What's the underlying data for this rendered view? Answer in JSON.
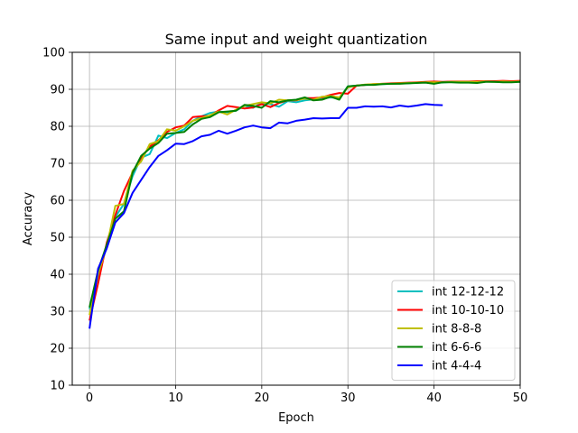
{
  "chart_data": {
    "type": "line",
    "title": "Same input and weight quantization",
    "xlabel": "Epoch",
    "ylabel": "Accuracy",
    "xlim": [
      -2,
      50
    ],
    "ylim": [
      10,
      100
    ],
    "xticks": [
      0,
      10,
      20,
      30,
      40,
      50
    ],
    "yticks": [
      10,
      20,
      30,
      40,
      50,
      60,
      70,
      80,
      90,
      100
    ],
    "grid": true,
    "legend_position": "lower-right",
    "series": [
      {
        "name": "int 12-12-12",
        "color": "#00bfbf",
        "x": [
          0,
          1,
          2,
          3,
          4,
          5,
          6,
          7,
          8,
          9,
          10,
          11,
          12,
          13,
          14,
          15,
          16,
          17,
          18,
          19,
          20,
          21,
          22,
          23,
          24,
          25,
          26,
          27,
          28,
          29,
          30,
          31,
          32,
          33,
          34,
          35,
          36,
          37,
          38,
          39,
          40,
          41,
          42,
          43,
          44,
          45,
          46,
          47,
          48,
          49,
          50
        ],
        "y": [
          30.5,
          39.5,
          47.5,
          55.5,
          59,
          66.5,
          71.5,
          72.5,
          77.5,
          76.8,
          78.2,
          79.2,
          81.5,
          82.7,
          83.6,
          84.0,
          83.8,
          84.2,
          85.5,
          85.0,
          86.4,
          86.0,
          85.3,
          86.8,
          86.5,
          87.0,
          87.3,
          87.6,
          87.8,
          87.6,
          90.8,
          91.0,
          91.2,
          91.3,
          91.4,
          91.5,
          91.6,
          91.6,
          91.8,
          91.9,
          91.8,
          91.8,
          92.0,
          91.9,
          92.0,
          92.0,
          92.1,
          92.0,
          92.0,
          92.1,
          92.0
        ]
      },
      {
        "name": "int 10-10-10",
        "color": "#ff0000",
        "x": [
          0,
          1,
          2,
          3,
          4,
          5,
          6,
          7,
          8,
          9,
          10,
          11,
          12,
          13,
          14,
          15,
          16,
          17,
          18,
          19,
          20,
          21,
          22,
          23,
          24,
          25,
          26,
          27,
          28,
          29,
          30,
          31,
          32,
          33,
          34,
          35,
          36,
          37,
          38,
          39,
          40,
          41,
          42,
          43,
          44,
          45,
          46,
          47,
          48,
          49,
          50
        ],
        "y": [
          27.5,
          37.5,
          48.5,
          56,
          62.5,
          67.5,
          71.5,
          74.5,
          76.2,
          78.5,
          79.7,
          80.2,
          82.5,
          82.7,
          82.8,
          84.3,
          85.5,
          85.2,
          84.8,
          85.1,
          86.0,
          85.2,
          86.3,
          87.0,
          87.0,
          87.6,
          87.6,
          87.8,
          88.5,
          89.0,
          88.8,
          91.0,
          91.2,
          91.4,
          91.5,
          91.6,
          91.7,
          91.8,
          91.9,
          92.0,
          92.1,
          92.0,
          92.1,
          92.1,
          92.1,
          92.2,
          92.2,
          92.2,
          92.3,
          92.2,
          92.3
        ]
      },
      {
        "name": "int 8-8-8",
        "color": "#bfbf00",
        "x": [
          0,
          1,
          2,
          3,
          4,
          5,
          6,
          7,
          8,
          9,
          10,
          11,
          12,
          13,
          14,
          15,
          16,
          17,
          18,
          19,
          20,
          21,
          22,
          23,
          24,
          25,
          26,
          27,
          28,
          29,
          30,
          31,
          32,
          33,
          34,
          35,
          36,
          37,
          38,
          39,
          40,
          41,
          42,
          43,
          44,
          45,
          46,
          47,
          48,
          49,
          50
        ],
        "y": [
          29,
          40,
          47.5,
          58.5,
          59,
          68,
          70.5,
          75.2,
          76.0,
          79.2,
          78.8,
          80.0,
          81.5,
          82.2,
          83.0,
          84.0,
          83.2,
          84.5,
          85.5,
          86.0,
          86.5,
          86.2,
          87.2,
          87.0,
          87.1,
          87.5,
          87.2,
          88.0,
          88.2,
          87.8,
          90.5,
          91.0,
          91.3,
          91.4,
          91.5,
          91.5,
          91.6,
          91.7,
          91.8,
          91.9,
          91.9,
          91.9,
          92.0,
          92.0,
          92.0,
          92.0,
          92.1,
          92.0,
          92.1,
          92.0,
          92.1
        ]
      },
      {
        "name": "int 6-6-6",
        "color": "#008000",
        "x": [
          0,
          1,
          2,
          3,
          4,
          5,
          6,
          7,
          8,
          9,
          10,
          11,
          12,
          13,
          14,
          15,
          16,
          17,
          18,
          19,
          20,
          21,
          22,
          23,
          24,
          25,
          26,
          27,
          28,
          29,
          30,
          31,
          32,
          33,
          34,
          35,
          36,
          37,
          38,
          39,
          40,
          41,
          42,
          43,
          44,
          45,
          46,
          47,
          48,
          49,
          50
        ],
        "y": [
          31.0,
          41.0,
          48.0,
          55.0,
          57.0,
          67.5,
          72.0,
          74.0,
          75.5,
          78.0,
          78.2,
          78.5,
          80.5,
          82.0,
          82.5,
          83.8,
          84.0,
          84.2,
          85.8,
          85.5,
          85.0,
          86.8,
          86.5,
          87.0,
          87.2,
          87.8,
          87.0,
          87.2,
          88.0,
          87.2,
          90.8,
          91.0,
          91.2,
          91.2,
          91.4,
          91.5,
          91.5,
          91.6,
          91.7,
          91.8,
          91.5,
          91.9,
          91.9,
          91.8,
          91.8,
          91.7,
          92.0,
          92.0,
          91.9,
          91.9,
          92.0
        ]
      },
      {
        "name": "int 4-4-4",
        "color": "#0000ff",
        "x": [
          0,
          1,
          2,
          3,
          4,
          5,
          6,
          7,
          8,
          9,
          10,
          11,
          12,
          13,
          14,
          15,
          16,
          17,
          18,
          19,
          20,
          21,
          22,
          23,
          24,
          25,
          26,
          27,
          28,
          29,
          30,
          31,
          32,
          33,
          34,
          35,
          36,
          37,
          38,
          39,
          40,
          41
        ],
        "y": [
          25.3,
          41.5,
          47.0,
          54.0,
          56.5,
          62.0,
          65.5,
          69.0,
          72.0,
          73.5,
          75.3,
          75.2,
          76.0,
          77.3,
          77.7,
          78.8,
          78.0,
          78.8,
          79.7,
          80.2,
          79.7,
          79.5,
          81.0,
          80.8,
          81.5,
          81.8,
          82.2,
          82.1,
          82.2,
          82.2,
          85.0,
          85.0,
          85.4,
          85.3,
          85.4,
          85.1,
          85.6,
          85.3,
          85.6,
          86.0,
          85.8,
          85.7
        ]
      }
    ]
  }
}
